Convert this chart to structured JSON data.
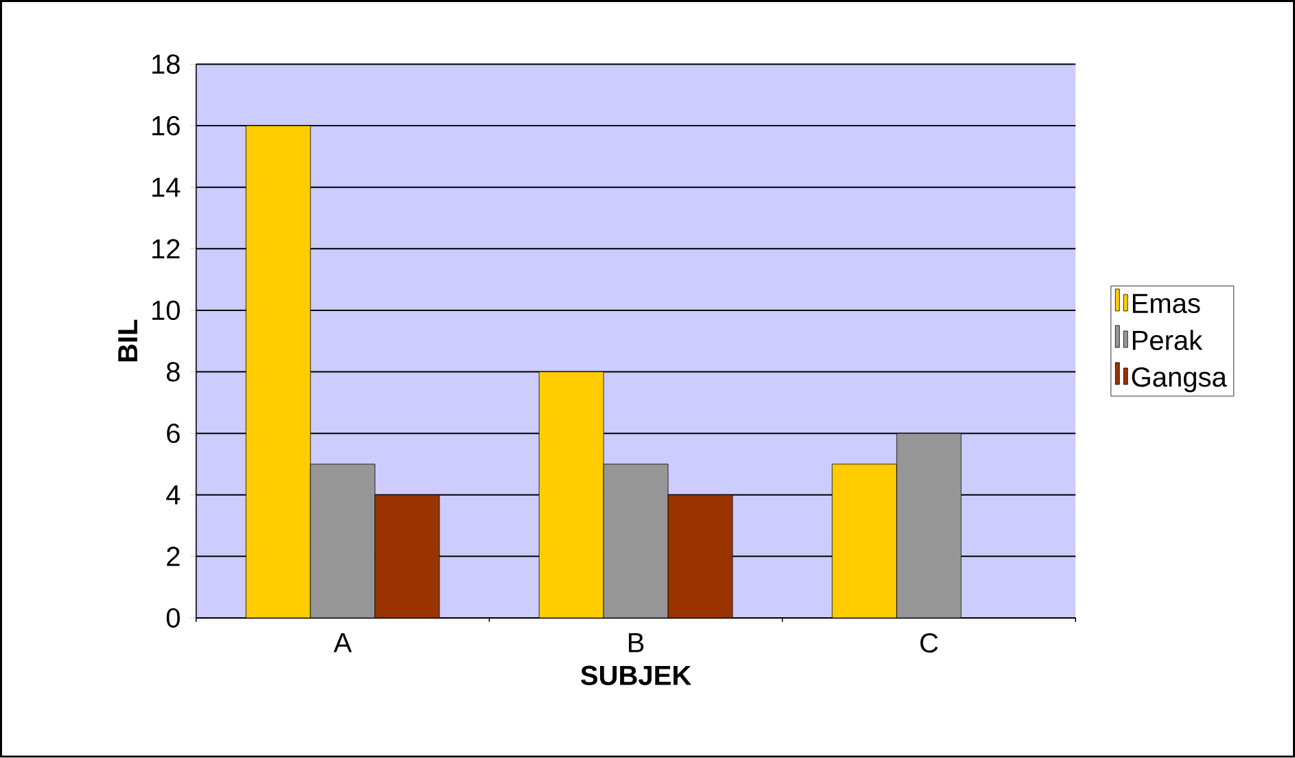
{
  "chart_data": {
    "type": "bar",
    "categories": [
      "A",
      "B",
      "C"
    ],
    "series": [
      {
        "name": "Emas",
        "color": "#ffcc00",
        "values": [
          16,
          8,
          5
        ]
      },
      {
        "name": "Perak",
        "color": "#969696",
        "values": [
          5,
          5,
          6
        ]
      },
      {
        "name": "Gangsa",
        "color": "#993300",
        "values": [
          4,
          4,
          0
        ]
      }
    ],
    "xlabel": "SUBJEK",
    "ylabel": "BIL",
    "ylim": [
      0,
      18
    ],
    "yticks": [
      0,
      2,
      4,
      6,
      8,
      10,
      12,
      14,
      16,
      18
    ],
    "grid": "y",
    "legend": "right"
  }
}
